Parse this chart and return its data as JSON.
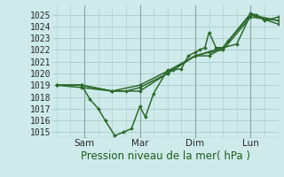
{
  "bg_color": "#ceeaea",
  "grid_color": "#aacccc",
  "line_color": "#2d6a2d",
  "marker_color": "#2d6a2d",
  "xlabel_text": "Pression niveau de la mer( hPa )",
  "ylim": [
    1014.5,
    1025.8
  ],
  "yticks": [
    1015,
    1016,
    1017,
    1018,
    1019,
    1020,
    1021,
    1022,
    1023,
    1024,
    1025
  ],
  "xtick_labels": [
    "",
    "Sam",
    "",
    "Mar",
    "",
    "Dim",
    "",
    "Lun"
  ],
  "xtick_positions": [
    0,
    1,
    2,
    3,
    4,
    5,
    6,
    7
  ],
  "xlim": [
    -0.15,
    8.0
  ],
  "vlines": [
    1,
    3,
    5,
    7
  ],
  "series": [
    [
      0.0,
      1019.0,
      0.9,
      1019.0,
      1.2,
      1017.8,
      1.5,
      1017.0,
      1.75,
      1016.0,
      2.1,
      1014.7,
      2.4,
      1015.0,
      2.7,
      1015.3,
      3.0,
      1017.2,
      3.2,
      1016.3,
      3.5,
      1018.3,
      4.0,
      1020.3,
      4.2,
      1020.3,
      4.5,
      1020.4,
      4.75,
      1021.5,
      5.0,
      1021.8,
      5.15,
      1022.0,
      5.35,
      1022.2,
      5.5,
      1023.5,
      5.75,
      1022.2,
      6.0,
      1022.2,
      6.2,
      1022.8,
      7.0,
      1025.1,
      7.2,
      1025.0,
      7.5,
      1024.5,
      8.0,
      1024.8
    ],
    [
      0.0,
      1019.0,
      0.9,
      1019.0,
      2.0,
      1018.5,
      2.5,
      1018.5,
      3.0,
      1018.8,
      4.0,
      1020.0,
      5.0,
      1021.5,
      5.5,
      1021.5,
      6.0,
      1022.2,
      6.5,
      1022.5,
      7.0,
      1025.0,
      8.0,
      1024.5
    ],
    [
      0.0,
      1019.0,
      0.9,
      1018.8,
      2.0,
      1018.5,
      3.0,
      1019.0,
      4.0,
      1020.2,
      5.0,
      1021.5,
      5.5,
      1021.8,
      6.0,
      1022.0,
      7.0,
      1024.8,
      8.0,
      1024.5
    ],
    [
      0.0,
      1019.0,
      0.9,
      1019.0,
      2.0,
      1018.5,
      3.0,
      1018.5,
      4.0,
      1020.0,
      5.0,
      1021.5,
      6.0,
      1022.2,
      7.0,
      1025.0,
      8.0,
      1024.2
    ]
  ],
  "fontsize_xlabel": 8.5,
  "fontsize_ytick": 7.0,
  "fontsize_xtick": 7.5
}
